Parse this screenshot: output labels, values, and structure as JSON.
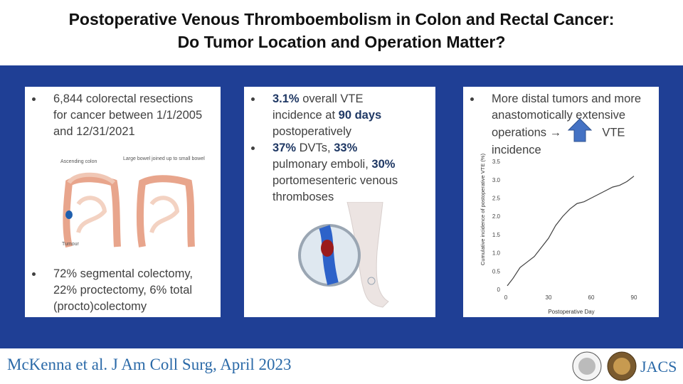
{
  "header": {
    "title_lines": [
      "Postoperative Venous Thromboembolism in Colon and Rectal Cancer:",
      "Do Tumor Location and Operation Matter?"
    ]
  },
  "panel1": {
    "bullets": [
      "6,844 colorectal resections for cancer between 1/1/2005 and 12/31/2021",
      "72% segmental colectomy, 22% proctectomy, 6% total (procto)colectomy"
    ],
    "illustration_labels": [
      "Ascending colon",
      "Large bowel joined up to small bowel",
      "Tumour"
    ]
  },
  "panel2": {
    "bullets": [
      [
        {
          "text": "3.1%",
          "bold": true
        },
        {
          "text": " overall VTE incidence at "
        },
        {
          "text": "90 days",
          "bold": true
        },
        {
          "text": " postoperatively"
        }
      ],
      [
        {
          "text": "37%",
          "bold": true
        },
        {
          "text": " DVTs, "
        },
        {
          "text": "33%",
          "bold": true
        },
        {
          "text": " pulmonary emboli, "
        },
        {
          "text": "30%",
          "bold": true
        },
        {
          "text": " portomesenteric venous thromboses"
        }
      ]
    ]
  },
  "panel3": {
    "bullet": [
      "More distal tumors and more anastomotically extensive operations →",
      "VTE incidence"
    ]
  },
  "chart_data": {
    "type": "line",
    "x_label": "Postoperative Day",
    "y_label": "Cumulative incidence of postoperative VTE (%)",
    "x": [
      1,
      5,
      10,
      15,
      20,
      25,
      30,
      35,
      40,
      45,
      50,
      55,
      60,
      65,
      70,
      75,
      80,
      85,
      90
    ],
    "series": [
      {
        "color": "#404040",
        "values": [
          0.1,
          0.3,
          0.6,
          0.75,
          0.9,
          1.15,
          1.4,
          1.75,
          2.0,
          2.2,
          2.35,
          2.4,
          2.5,
          2.6,
          2.7,
          2.8,
          2.85,
          2.95,
          3.1
        ]
      }
    ],
    "xlim": [
      0,
      92
    ],
    "ylim": [
      0,
      3.6
    ],
    "xticks": [
      0,
      30,
      60,
      90
    ],
    "yticks": [
      0,
      0.5,
      {
        "value": 1,
        "label": "1.0"
      },
      1.5,
      {
        "value": 2,
        "label": "2.0"
      },
      2.5,
      {
        "value": 3,
        "label": "3.0"
      },
      3.5
    ],
    "grid": false
  },
  "footer": {
    "citation": "McKenna et al. J Am Coll Surg, April 2023",
    "journal": "JACS"
  }
}
